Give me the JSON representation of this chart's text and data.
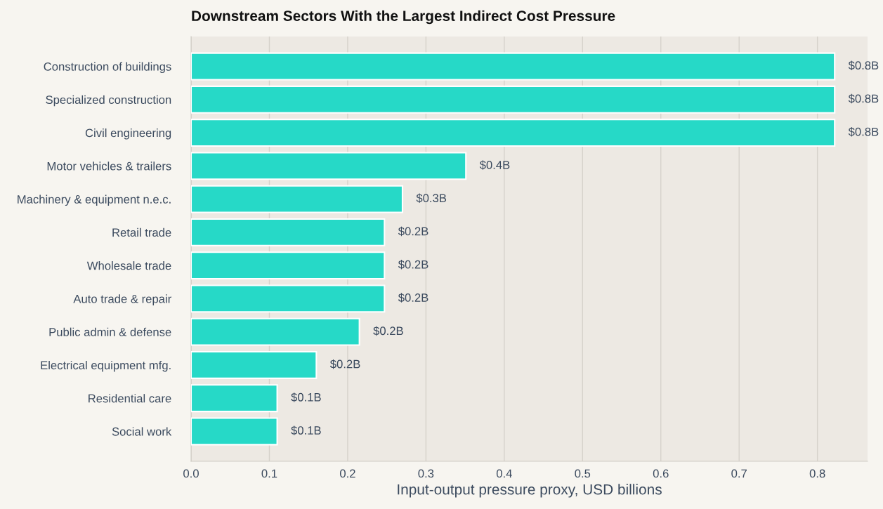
{
  "chart_data": {
    "type": "bar",
    "orientation": "horizontal",
    "title": "Downstream Sectors With the Largest Indirect Cost Pressure",
    "xlabel": "Input-output pressure proxy, USD billions",
    "categories": [
      "Construction of buildings",
      "Specialized construction",
      "Civil engineering",
      "Motor vehicles & trailers",
      "Machinery & equipment n.e.c.",
      "Retail trade",
      "Wholesale trade",
      "Auto trade & repair",
      "Public admin & defense",
      "Electrical equipment mfg.",
      "Residential care",
      "Social work"
    ],
    "values": [
      0.822,
      0.822,
      0.822,
      0.351,
      0.27,
      0.247,
      0.247,
      0.247,
      0.215,
      0.16,
      0.11,
      0.11
    ],
    "value_labels": [
      "$0.8B",
      "$0.8B",
      "$0.8B",
      "$0.4B",
      "$0.3B",
      "$0.2B",
      "$0.2B",
      "$0.2B",
      "$0.2B",
      "$0.2B",
      "$0.1B",
      "$0.1B"
    ],
    "color": "#26d9c7",
    "xlim": [
      0,
      0.864
    ],
    "xticks": [
      {
        "value": 0,
        "label": "0.0"
      },
      0.1,
      0.2,
      0.3,
      0.4,
      0.5,
      0.6,
      0.7,
      0.8
    ],
    "grid": "x",
    "legend": false
  }
}
